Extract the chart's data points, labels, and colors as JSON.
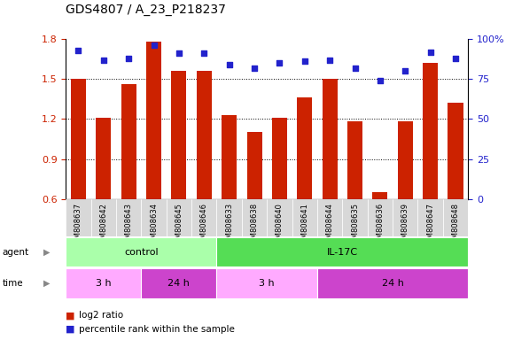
{
  "title": "GDS4807 / A_23_P218237",
  "samples": [
    "GSM808637",
    "GSM808642",
    "GSM808643",
    "GSM808634",
    "GSM808645",
    "GSM808646",
    "GSM808633",
    "GSM808638",
    "GSM808640",
    "GSM808641",
    "GSM808644",
    "GSM808635",
    "GSM808636",
    "GSM808639",
    "GSM808647",
    "GSM808648"
  ],
  "log2_ratio": [
    1.5,
    1.21,
    1.46,
    1.78,
    1.56,
    1.56,
    1.23,
    1.1,
    1.21,
    1.36,
    1.5,
    1.18,
    0.65,
    1.18,
    1.62,
    1.32
  ],
  "percentile": [
    93,
    87,
    88,
    96,
    91,
    91,
    84,
    82,
    85,
    86,
    87,
    82,
    74,
    80,
    92,
    88
  ],
  "ylim_min": 0.6,
  "ylim_max": 1.8,
  "yticks": [
    0.6,
    0.9,
    1.2,
    1.5,
    1.8
  ],
  "right_yticks": [
    0,
    25,
    50,
    75,
    100
  ],
  "bar_color": "#cc2200",
  "dot_color": "#2222cc",
  "bg_color": "#ffffff",
  "agent_groups": [
    {
      "label": "control",
      "start": 0,
      "end": 6,
      "color": "#aaffaa"
    },
    {
      "label": "IL-17C",
      "start": 6,
      "end": 16,
      "color": "#55dd55"
    }
  ],
  "time_groups": [
    {
      "label": "3 h",
      "start": 0,
      "end": 3,
      "color": "#ffaaff"
    },
    {
      "label": "24 h",
      "start": 3,
      "end": 6,
      "color": "#cc44cc"
    },
    {
      "label": "3 h",
      "start": 6,
      "end": 10,
      "color": "#ffaaff"
    },
    {
      "label": "24 h",
      "start": 10,
      "end": 16,
      "color": "#cc44cc"
    }
  ],
  "tick_color_left": "#cc2200",
  "tick_color_right": "#2222cc",
  "title_fontsize": 10,
  "legend_red_label": "log2 ratio",
  "legend_blue_label": "percentile rank within the sample"
}
